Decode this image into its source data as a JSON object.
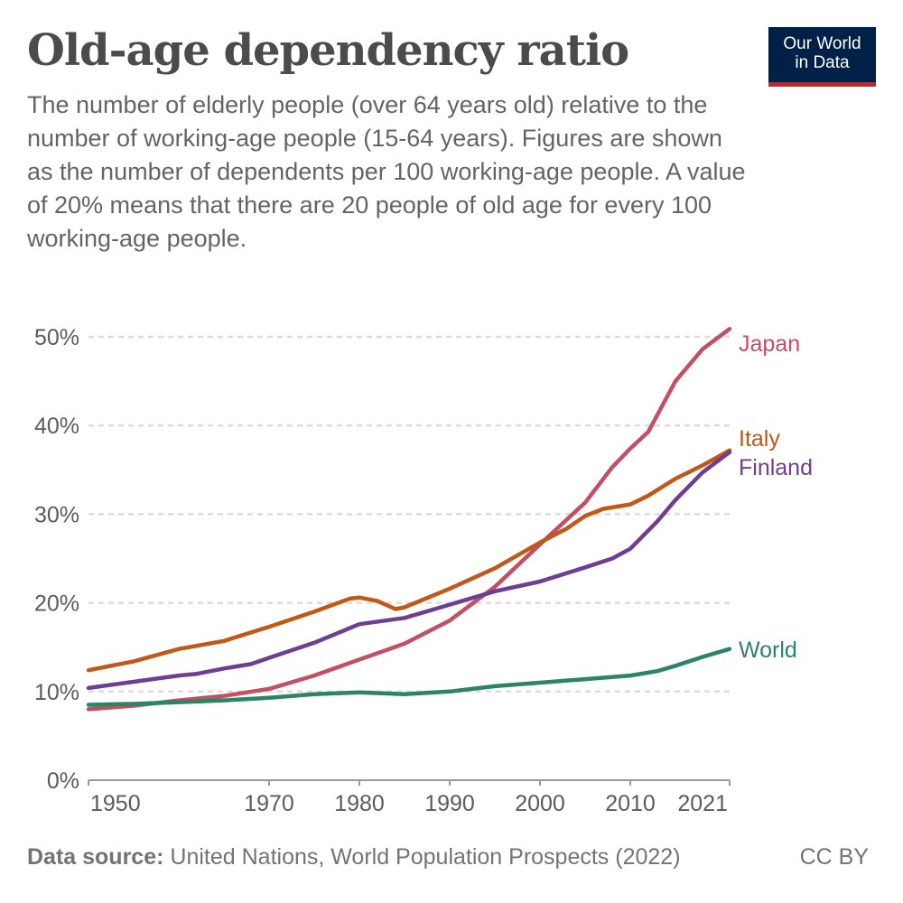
{
  "title": "Old-age dependency ratio",
  "subtitle": "The number of elderly people (over 64 years old) relative to the number of working-age people (15-64 years). Figures are shown as the number of dependents per 100 working-age people. A value of 20% means that there are 20 people of old age for every 100 working-age people.",
  "logo": {
    "line1": "Our World",
    "line2": "in Data",
    "bg": "#002147",
    "accent": "#ce261e"
  },
  "footer": {
    "source_label": "Data source:",
    "source_text": "United Nations, World Population Prospects (2022)",
    "license": "CC BY"
  },
  "chart_data": {
    "type": "line",
    "title": "Old-age dependency ratio",
    "xlabel": "",
    "ylabel": "",
    "xlim": [
      1950,
      2021
    ],
    "ylim": [
      0,
      50
    ],
    "x_ticks": [
      1950,
      1970,
      1980,
      1990,
      2000,
      2010,
      2021
    ],
    "y_ticks": [
      0,
      10,
      20,
      30,
      40,
      50
    ],
    "y_tick_labels": [
      "0%",
      "10%",
      "20%",
      "30%",
      "40%",
      "50%"
    ],
    "grid": "horizontal dashed",
    "legend": "right, inline labels at line ends",
    "series": [
      {
        "name": "Japan",
        "color": "#c15065",
        "points": [
          [
            1950,
            8.0
          ],
          [
            1955,
            8.4
          ],
          [
            1960,
            9.0
          ],
          [
            1965,
            9.5
          ],
          [
            1970,
            10.3
          ],
          [
            1975,
            11.8
          ],
          [
            1980,
            13.6
          ],
          [
            1985,
            15.4
          ],
          [
            1990,
            18.0
          ],
          [
            1995,
            21.8
          ],
          [
            2000,
            26.6
          ],
          [
            2005,
            31.3
          ],
          [
            2008,
            35.3
          ],
          [
            2010,
            37.4
          ],
          [
            2012,
            39.3
          ],
          [
            2015,
            45.0
          ],
          [
            2018,
            48.6
          ],
          [
            2021,
            50.9
          ]
        ]
      },
      {
        "name": "Italy",
        "color": "#c05917",
        "points": [
          [
            1950,
            12.4
          ],
          [
            1955,
            13.4
          ],
          [
            1960,
            14.8
          ],
          [
            1965,
            15.7
          ],
          [
            1970,
            17.3
          ],
          [
            1975,
            19.0
          ],
          [
            1979,
            20.5
          ],
          [
            1980,
            20.6
          ],
          [
            1982,
            20.2
          ],
          [
            1984,
            19.3
          ],
          [
            1985,
            19.5
          ],
          [
            1990,
            21.6
          ],
          [
            1995,
            23.9
          ],
          [
            2000,
            26.8
          ],
          [
            2003,
            28.4
          ],
          [
            2005,
            29.8
          ],
          [
            2007,
            30.6
          ],
          [
            2010,
            31.1
          ],
          [
            2012,
            32.1
          ],
          [
            2015,
            34.0
          ],
          [
            2018,
            35.5
          ],
          [
            2021,
            37.2
          ]
        ]
      },
      {
        "name": "Finland",
        "color": "#6d3e91",
        "points": [
          [
            1950,
            10.4
          ],
          [
            1955,
            11.1
          ],
          [
            1960,
            11.8
          ],
          [
            1962,
            12.0
          ],
          [
            1965,
            12.6
          ],
          [
            1968,
            13.1
          ],
          [
            1970,
            13.8
          ],
          [
            1975,
            15.5
          ],
          [
            1980,
            17.6
          ],
          [
            1985,
            18.3
          ],
          [
            1990,
            19.8
          ],
          [
            1995,
            21.3
          ],
          [
            2000,
            22.4
          ],
          [
            2005,
            24.0
          ],
          [
            2008,
            25.0
          ],
          [
            2010,
            26.1
          ],
          [
            2013,
            29.2
          ],
          [
            2015,
            31.6
          ],
          [
            2018,
            34.7
          ],
          [
            2021,
            37.0
          ]
        ]
      },
      {
        "name": "World",
        "color": "#2c8465",
        "points": [
          [
            1950,
            8.5
          ],
          [
            1955,
            8.6
          ],
          [
            1960,
            8.8
          ],
          [
            1965,
            9.0
          ],
          [
            1970,
            9.3
          ],
          [
            1975,
            9.7
          ],
          [
            1980,
            9.9
          ],
          [
            1985,
            9.7
          ],
          [
            1990,
            10.0
          ],
          [
            1995,
            10.6
          ],
          [
            2000,
            11.0
          ],
          [
            2005,
            11.4
          ],
          [
            2010,
            11.8
          ],
          [
            2013,
            12.3
          ],
          [
            2015,
            12.9
          ],
          [
            2018,
            13.9
          ],
          [
            2021,
            14.8
          ]
        ]
      }
    ]
  }
}
